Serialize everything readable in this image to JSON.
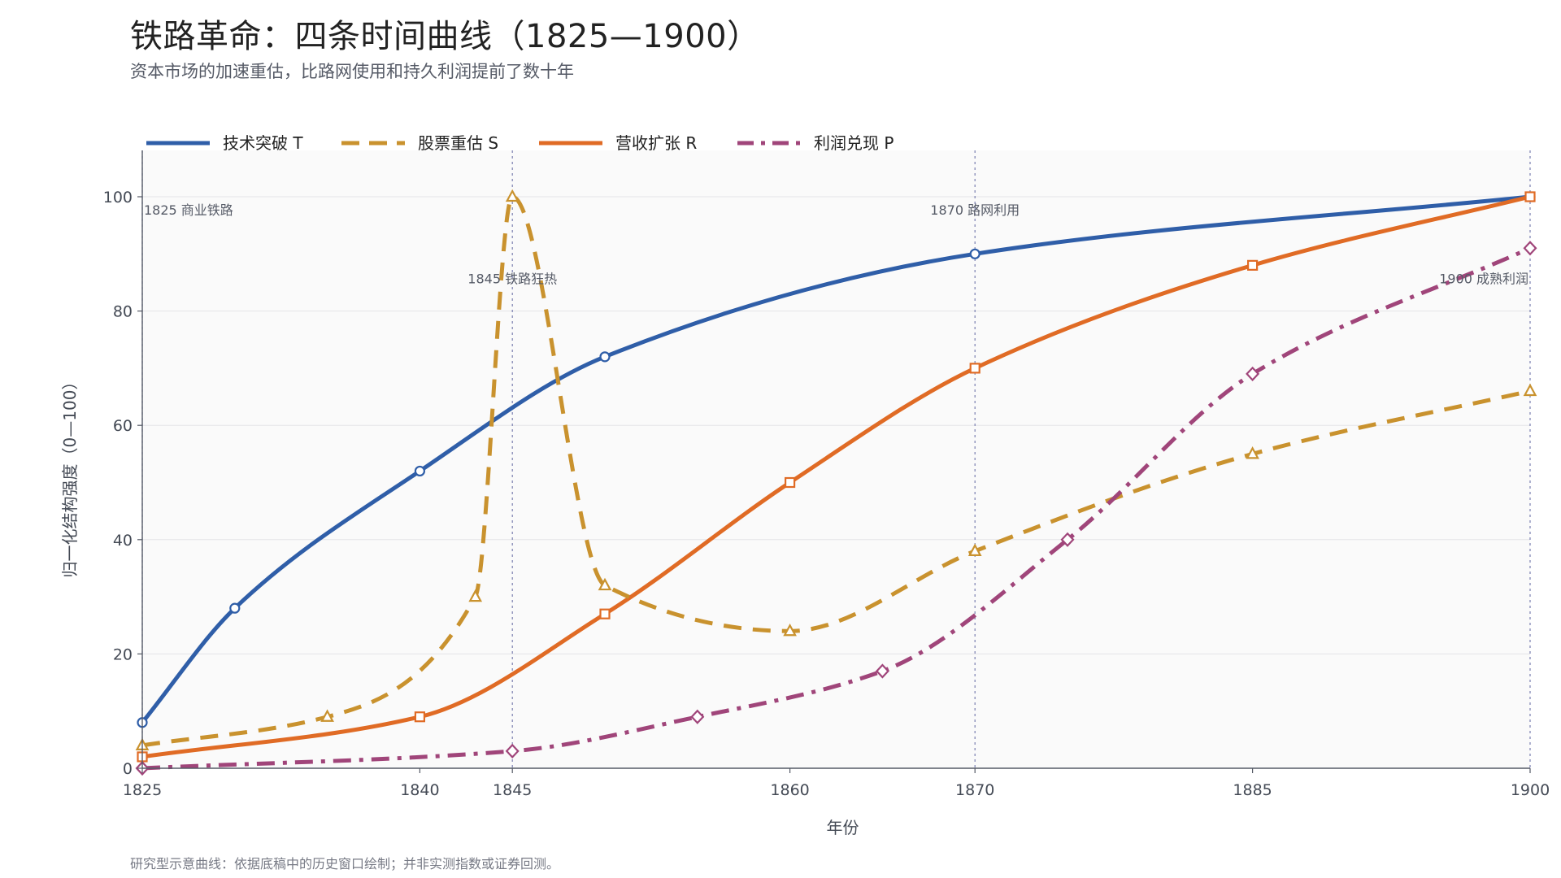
{
  "header": {
    "title": "铁路革命：四条时间曲线（1825—1900）",
    "subtitle": "资本市场的加速重估，比路网使用和持久利润提前了数十年"
  },
  "footnote": "研究型示意曲线：依据底稿中的历史窗口绘制；并非实测指数或证券回测。",
  "chart_data": {
    "type": "line",
    "xlabel": "年份",
    "ylabel": "归一化结构强度（0—100）",
    "xlim": [
      1825,
      1900
    ],
    "ylim": [
      0,
      100
    ],
    "x_ticks": [
      1825,
      1840,
      1845,
      1860,
      1870,
      1885,
      1900
    ],
    "y_ticks": [
      0,
      20,
      40,
      60,
      80,
      100
    ],
    "grid": "horizontal",
    "legend_position": "top",
    "series": [
      {
        "name": "技术突破 T",
        "color": "#2f5ea8",
        "style": "solid",
        "marker": "circle",
        "points": [
          [
            1825,
            8
          ],
          [
            1830,
            28
          ],
          [
            1840,
            52
          ],
          [
            1850,
            72
          ],
          [
            1870,
            90
          ],
          [
            1900,
            100
          ]
        ]
      },
      {
        "name": "股票重估 S",
        "color": "#c9922e",
        "style": "dashed",
        "marker": "triangle",
        "points": [
          [
            1825,
            4
          ],
          [
            1835,
            9
          ],
          [
            1843,
            30
          ],
          [
            1845,
            100
          ],
          [
            1850,
            32
          ],
          [
            1860,
            24
          ],
          [
            1870,
            38
          ],
          [
            1885,
            55
          ],
          [
            1900,
            66
          ]
        ]
      },
      {
        "name": "营收扩张 R",
        "color": "#e06b25",
        "style": "solid",
        "marker": "square",
        "points": [
          [
            1825,
            2
          ],
          [
            1840,
            9
          ],
          [
            1850,
            27
          ],
          [
            1860,
            50
          ],
          [
            1870,
            70
          ],
          [
            1885,
            88
          ],
          [
            1900,
            100
          ]
        ]
      },
      {
        "name": "利润兑现 P",
        "color": "#a0457a",
        "style": "dashdot",
        "marker": "diamond",
        "points": [
          [
            1825,
            0
          ],
          [
            1845,
            3
          ],
          [
            1855,
            9
          ],
          [
            1865,
            17
          ],
          [
            1875,
            40
          ],
          [
            1885,
            69
          ],
          [
            1900,
            91
          ]
        ]
      }
    ],
    "annotations": [
      {
        "x": 1825,
        "label": "1825  商业铁路",
        "y": 100,
        "anchor": "start"
      },
      {
        "x": 1845,
        "label": "1845  铁路狂热",
        "y": 88,
        "anchor": "middle"
      },
      {
        "x": 1870,
        "label": "1870  路网利用",
        "y": 100,
        "anchor": "middle"
      },
      {
        "x": 1900,
        "label": "1900  成熟利润",
        "y": 88,
        "anchor": "end"
      }
    ]
  }
}
